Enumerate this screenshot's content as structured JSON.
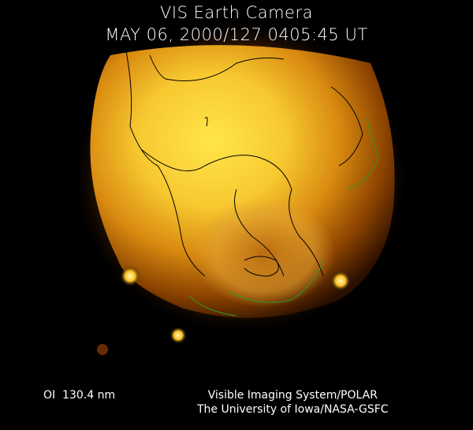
{
  "header": {
    "title": "VIS Earth Camera",
    "timestamp": "MAY 06, 2000/127 0405:45 UT"
  },
  "footer": {
    "filter": "OI  130.4 nm",
    "credit_line1": "Visible Imaging System/POLAR",
    "credit_line2": "The University of Iowa/NASA-GSFC"
  },
  "colors": {
    "background": "#000000",
    "glow_bright": "#ffe040",
    "glow_mid": "#d88a10",
    "glow_dark": "#5a2500",
    "coastline": "#000000",
    "coastline_night": "#2a9a2a"
  }
}
